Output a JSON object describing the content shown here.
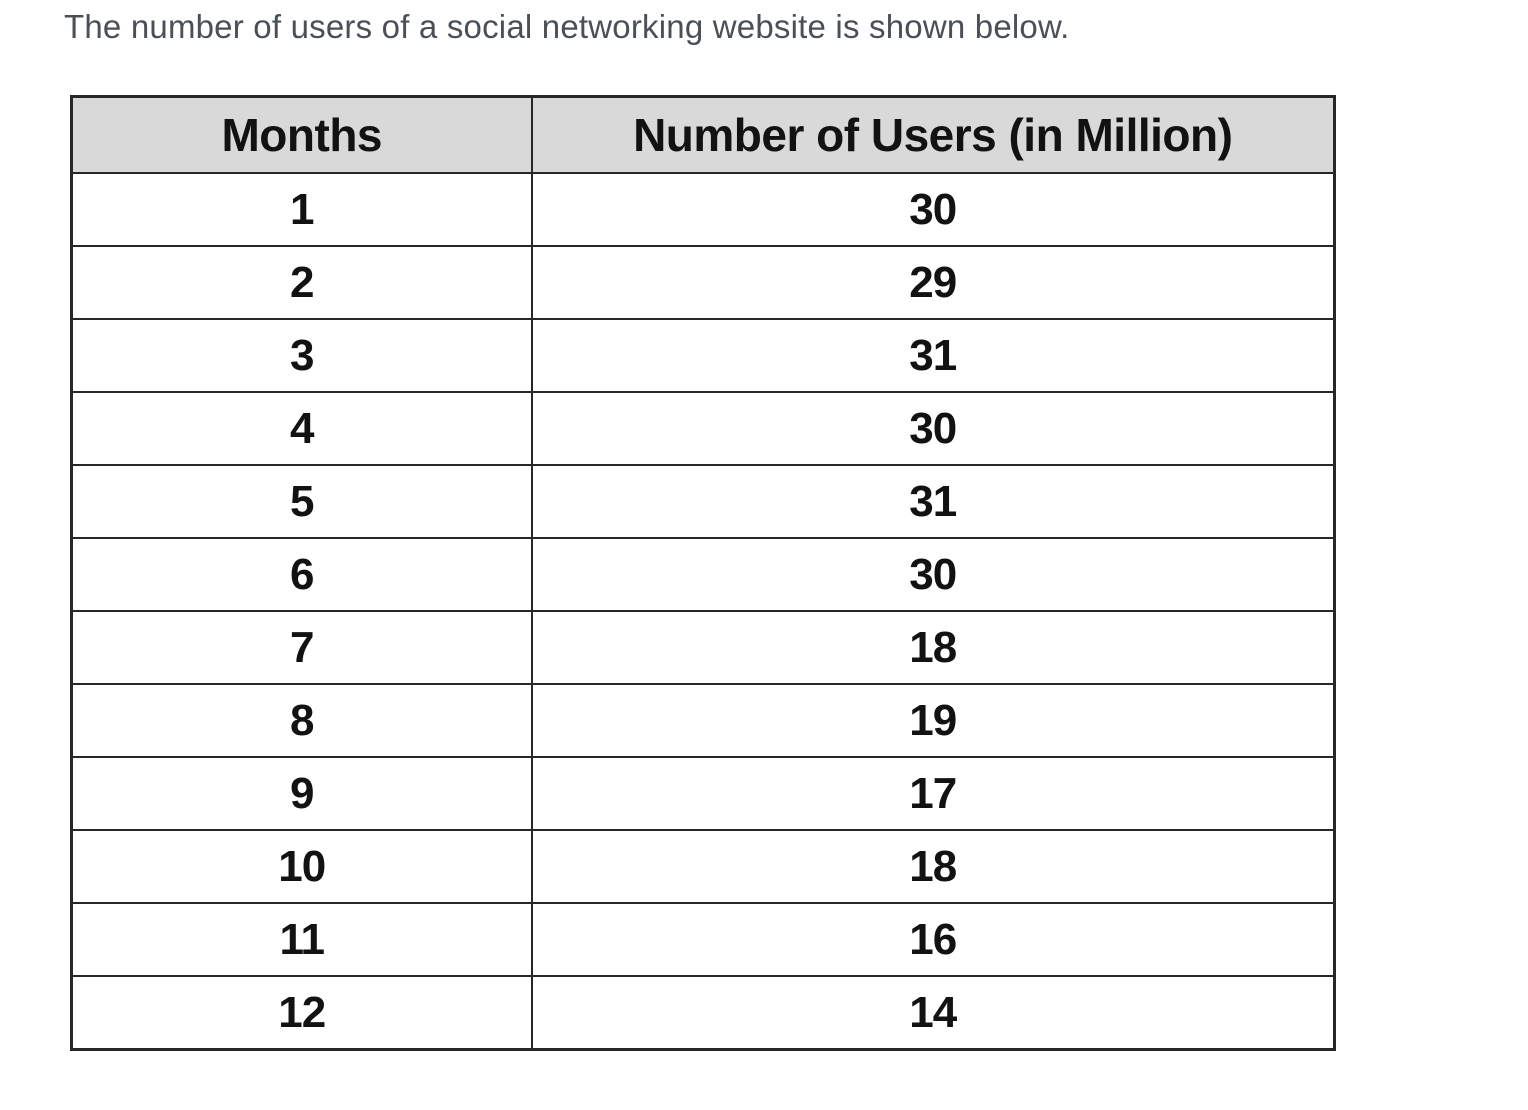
{
  "title": "The number of users of a social networking website is shown below.",
  "table": {
    "headers": {
      "months": "Months",
      "users": "Number of Users (in Million)"
    },
    "rows": [
      {
        "month": "1",
        "users": "30"
      },
      {
        "month": "2",
        "users": "29"
      },
      {
        "month": "3",
        "users": "31"
      },
      {
        "month": "4",
        "users": "30"
      },
      {
        "month": "5",
        "users": "31"
      },
      {
        "month": "6",
        "users": "30"
      },
      {
        "month": "7",
        "users": "18"
      },
      {
        "month": "8",
        "users": "19"
      },
      {
        "month": "9",
        "users": "17"
      },
      {
        "month": "10",
        "users": "18"
      },
      {
        "month": "11",
        "users": "16"
      },
      {
        "month": "12",
        "users": "14"
      }
    ]
  },
  "colors": {
    "header_background": "#d9d9d9",
    "border": "#272727",
    "title_text": "#4a5056",
    "cell_text": "#121212",
    "page_background": "#ffffff"
  },
  "chart_data": {
    "type": "table",
    "title": "The number of users of a social networking website is shown below.",
    "columns": [
      "Months",
      "Number of Users (in Million)"
    ],
    "categories": [
      1,
      2,
      3,
      4,
      5,
      6,
      7,
      8,
      9,
      10,
      11,
      12
    ],
    "values": [
      30,
      29,
      31,
      30,
      31,
      30,
      18,
      19,
      17,
      18,
      16,
      14
    ],
    "xlabel": "Months",
    "ylabel": "Number of Users (in Million)"
  }
}
